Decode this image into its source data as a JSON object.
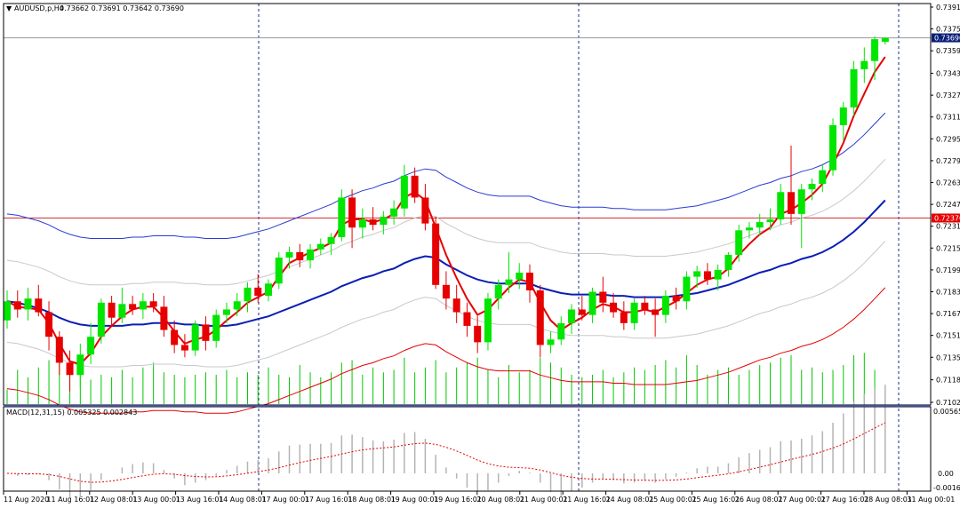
{
  "header": {
    "symbol": "AUDUSD,p,H4",
    "ohlc": "0.73662 0.73691 0.73642 0.73690"
  },
  "macd": {
    "label": "MACD(12,31,15) 0.005325 0.002843",
    "levels": [
      "0.005656",
      "0.00",
      "-0.00162"
    ]
  },
  "price_labels": {
    "current": "0.73690",
    "hline": "0.72370"
  },
  "colors": {
    "bull": "#00e600",
    "bear": "#e60000",
    "ma_fast": "#e60000",
    "ma_mid": "#0a1eb4",
    "env": "#c8c8c8",
    "volume": "#00c800",
    "hline": "#d23232",
    "current_bg": "#0a1e78",
    "hline_bg": "#e60000"
  },
  "chart_data": {
    "type": "candlestick",
    "y_ticks": [
      "0.73915",
      "0.73755",
      "0.73595",
      "0.73430",
      "0.73270",
      "0.73110",
      "0.72950",
      "0.72790",
      "0.72630",
      "0.72470",
      "0.72310",
      "0.72150",
      "0.71990",
      "0.71830",
      "0.71670",
      "0.71510",
      "0.71350",
      "0.71185",
      "0.71020"
    ],
    "ylim": [
      0.7102,
      0.73915
    ],
    "x_labels": [
      "11 Aug 2020",
      "11 Aug 16:01",
      "12 Aug 08:01",
      "13 Aug 00:01",
      "13 Aug 16:01",
      "14 Aug 08:01",
      "17 Aug 00:01",
      "17 Aug 16:01",
      "18 Aug 08:01",
      "19 Aug 00:01",
      "19 Aug 16:01",
      "20 Aug 08:01",
      "21 Aug 00:01",
      "21 Aug 16:01",
      "24 Aug 08:01",
      "25 Aug 00:01",
      "25 Aug 16:01",
      "26 Aug 08:01",
      "27 Aug 00:01",
      "27 Aug 16:01",
      "28 Aug 08:01",
      "31 Aug 00:01"
    ],
    "candles": [
      {
        "o": 0.7162,
        "h": 0.7184,
        "l": 0.7156,
        "c": 0.7176
      },
      {
        "o": 0.7176,
        "h": 0.7184,
        "l": 0.7164,
        "c": 0.717
      },
      {
        "o": 0.717,
        "h": 0.7186,
        "l": 0.7162,
        "c": 0.7178
      },
      {
        "o": 0.7178,
        "h": 0.7188,
        "l": 0.7165,
        "c": 0.7168
      },
      {
        "o": 0.7168,
        "h": 0.7176,
        "l": 0.714,
        "c": 0.715
      },
      {
        "o": 0.715,
        "h": 0.7154,
        "l": 0.7122,
        "c": 0.7131
      },
      {
        "o": 0.7131,
        "h": 0.714,
        "l": 0.711,
        "c": 0.7122
      },
      {
        "o": 0.7122,
        "h": 0.7145,
        "l": 0.7113,
        "c": 0.7137
      },
      {
        "o": 0.7137,
        "h": 0.716,
        "l": 0.713,
        "c": 0.715
      },
      {
        "o": 0.715,
        "h": 0.7178,
        "l": 0.7145,
        "c": 0.7175
      },
      {
        "o": 0.7175,
        "h": 0.718,
        "l": 0.7158,
        "c": 0.7164
      },
      {
        "o": 0.7164,
        "h": 0.7186,
        "l": 0.716,
        "c": 0.7174
      },
      {
        "o": 0.7174,
        "h": 0.718,
        "l": 0.7166,
        "c": 0.717
      },
      {
        "o": 0.717,
        "h": 0.7182,
        "l": 0.7163,
        "c": 0.7176
      },
      {
        "o": 0.7176,
        "h": 0.7182,
        "l": 0.7168,
        "c": 0.7172
      },
      {
        "o": 0.7172,
        "h": 0.718,
        "l": 0.715,
        "c": 0.7155
      },
      {
        "o": 0.7155,
        "h": 0.7162,
        "l": 0.7138,
        "c": 0.7144
      },
      {
        "o": 0.7144,
        "h": 0.7152,
        "l": 0.7135,
        "c": 0.714
      },
      {
        "o": 0.714,
        "h": 0.7162,
        "l": 0.7136,
        "c": 0.7159
      },
      {
        "o": 0.7159,
        "h": 0.7165,
        "l": 0.714,
        "c": 0.7147
      },
      {
        "o": 0.7147,
        "h": 0.717,
        "l": 0.7142,
        "c": 0.7166
      },
      {
        "o": 0.7166,
        "h": 0.7175,
        "l": 0.716,
        "c": 0.717
      },
      {
        "o": 0.717,
        "h": 0.7182,
        "l": 0.7165,
        "c": 0.7176
      },
      {
        "o": 0.7176,
        "h": 0.719,
        "l": 0.7168,
        "c": 0.7186
      },
      {
        "o": 0.7186,
        "h": 0.7196,
        "l": 0.7175,
        "c": 0.718
      },
      {
        "o": 0.718,
        "h": 0.7192,
        "l": 0.7176,
        "c": 0.7189
      },
      {
        "o": 0.7189,
        "h": 0.7212,
        "l": 0.7185,
        "c": 0.7208
      },
      {
        "o": 0.7208,
        "h": 0.7216,
        "l": 0.72,
        "c": 0.7212
      },
      {
        "o": 0.7212,
        "h": 0.7218,
        "l": 0.7201,
        "c": 0.7206
      },
      {
        "o": 0.7206,
        "h": 0.7218,
        "l": 0.72,
        "c": 0.7214
      },
      {
        "o": 0.7214,
        "h": 0.7222,
        "l": 0.721,
        "c": 0.7218
      },
      {
        "o": 0.7218,
        "h": 0.7226,
        "l": 0.721,
        "c": 0.7223
      },
      {
        "o": 0.7223,
        "h": 0.7258,
        "l": 0.722,
        "c": 0.7252
      },
      {
        "o": 0.7252,
        "h": 0.7258,
        "l": 0.7215,
        "c": 0.723
      },
      {
        "o": 0.723,
        "h": 0.7244,
        "l": 0.7222,
        "c": 0.7236
      },
      {
        "o": 0.7236,
        "h": 0.7245,
        "l": 0.7228,
        "c": 0.7232
      },
      {
        "o": 0.7232,
        "h": 0.7242,
        "l": 0.7225,
        "c": 0.7238
      },
      {
        "o": 0.7238,
        "h": 0.725,
        "l": 0.7232,
        "c": 0.7244
      },
      {
        "o": 0.7244,
        "h": 0.7276,
        "l": 0.7238,
        "c": 0.7268
      },
      {
        "o": 0.7268,
        "h": 0.7274,
        "l": 0.7248,
        "c": 0.7252
      },
      {
        "o": 0.7252,
        "h": 0.7262,
        "l": 0.7228,
        "c": 0.7233
      },
      {
        "o": 0.7233,
        "h": 0.7238,
        "l": 0.7185,
        "c": 0.7188
      },
      {
        "o": 0.7188,
        "h": 0.7198,
        "l": 0.717,
        "c": 0.7178
      },
      {
        "o": 0.7178,
        "h": 0.7188,
        "l": 0.716,
        "c": 0.7168
      },
      {
        "o": 0.7168,
        "h": 0.7175,
        "l": 0.715,
        "c": 0.7158
      },
      {
        "o": 0.7158,
        "h": 0.7165,
        "l": 0.7138,
        "c": 0.7146
      },
      {
        "o": 0.7146,
        "h": 0.7182,
        "l": 0.714,
        "c": 0.7178
      },
      {
        "o": 0.7178,
        "h": 0.7192,
        "l": 0.717,
        "c": 0.7188
      },
      {
        "o": 0.7188,
        "h": 0.7212,
        "l": 0.7182,
        "c": 0.7192
      },
      {
        "o": 0.7192,
        "h": 0.7204,
        "l": 0.7185,
        "c": 0.7197
      },
      {
        "o": 0.7197,
        "h": 0.7203,
        "l": 0.7175,
        "c": 0.7184
      },
      {
        "o": 0.7184,
        "h": 0.7188,
        "l": 0.7135,
        "c": 0.7144
      },
      {
        "o": 0.7144,
        "h": 0.7154,
        "l": 0.7138,
        "c": 0.7148
      },
      {
        "o": 0.7148,
        "h": 0.7165,
        "l": 0.7144,
        "c": 0.716
      },
      {
        "o": 0.716,
        "h": 0.7174,
        "l": 0.7152,
        "c": 0.717
      },
      {
        "o": 0.717,
        "h": 0.718,
        "l": 0.7162,
        "c": 0.7166
      },
      {
        "o": 0.7166,
        "h": 0.7186,
        "l": 0.716,
        "c": 0.7183
      },
      {
        "o": 0.7183,
        "h": 0.7194,
        "l": 0.7168,
        "c": 0.7175
      },
      {
        "o": 0.7175,
        "h": 0.7182,
        "l": 0.7164,
        "c": 0.7168
      },
      {
        "o": 0.7168,
        "h": 0.7176,
        "l": 0.7155,
        "c": 0.716
      },
      {
        "o": 0.716,
        "h": 0.7178,
        "l": 0.7155,
        "c": 0.7175
      },
      {
        "o": 0.7175,
        "h": 0.718,
        "l": 0.7166,
        "c": 0.717
      },
      {
        "o": 0.717,
        "h": 0.7178,
        "l": 0.715,
        "c": 0.7166
      },
      {
        "o": 0.7166,
        "h": 0.7184,
        "l": 0.716,
        "c": 0.718
      },
      {
        "o": 0.718,
        "h": 0.7186,
        "l": 0.717,
        "c": 0.7176
      },
      {
        "o": 0.7176,
        "h": 0.7198,
        "l": 0.717,
        "c": 0.7194
      },
      {
        "o": 0.7194,
        "h": 0.7202,
        "l": 0.7186,
        "c": 0.7198
      },
      {
        "o": 0.7198,
        "h": 0.7204,
        "l": 0.7188,
        "c": 0.7192
      },
      {
        "o": 0.7192,
        "h": 0.7203,
        "l": 0.7184,
        "c": 0.7199
      },
      {
        "o": 0.7199,
        "h": 0.7212,
        "l": 0.7194,
        "c": 0.721
      },
      {
        "o": 0.721,
        "h": 0.7232,
        "l": 0.7205,
        "c": 0.7228
      },
      {
        "o": 0.7228,
        "h": 0.7234,
        "l": 0.7222,
        "c": 0.723
      },
      {
        "o": 0.723,
        "h": 0.724,
        "l": 0.7224,
        "c": 0.7234
      },
      {
        "o": 0.7234,
        "h": 0.7244,
        "l": 0.7228,
        "c": 0.7236
      },
      {
        "o": 0.7236,
        "h": 0.7262,
        "l": 0.7232,
        "c": 0.7256
      },
      {
        "o": 0.7256,
        "h": 0.729,
        "l": 0.7232,
        "c": 0.724
      },
      {
        "o": 0.724,
        "h": 0.7262,
        "l": 0.7215,
        "c": 0.7258
      },
      {
        "o": 0.7258,
        "h": 0.7266,
        "l": 0.725,
        "c": 0.7262
      },
      {
        "o": 0.7262,
        "h": 0.7276,
        "l": 0.7256,
        "c": 0.7272
      },
      {
        "o": 0.7272,
        "h": 0.731,
        "l": 0.7268,
        "c": 0.7305
      },
      {
        "o": 0.7305,
        "h": 0.7322,
        "l": 0.7294,
        "c": 0.7318
      },
      {
        "o": 0.7318,
        "h": 0.7352,
        "l": 0.7312,
        "c": 0.7346
      },
      {
        "o": 0.7346,
        "h": 0.7362,
        "l": 0.7336,
        "c": 0.7352
      },
      {
        "o": 0.7352,
        "h": 0.737,
        "l": 0.7338,
        "c": 0.7368
      },
      {
        "o": 0.7366,
        "h": 0.7369,
        "l": 0.7364,
        "c": 0.7369
      }
    ],
    "volume": [
      30,
      70,
      55,
      75,
      90,
      85,
      95,
      65,
      50,
      60,
      55,
      70,
      55,
      75,
      85,
      65,
      60,
      55,
      60,
      65,
      60,
      70,
      55,
      65,
      60,
      75,
      60,
      55,
      80,
      65,
      55,
      65,
      85,
      90,
      60,
      75,
      65,
      70,
      95,
      65,
      75,
      90,
      65,
      75,
      85,
      95,
      70,
      55,
      80,
      65,
      70,
      95,
      85,
      75,
      60,
      55,
      60,
      70,
      55,
      65,
      75,
      70,
      80,
      90,
      75,
      100,
      80,
      60,
      70,
      75,
      60,
      70,
      80,
      85,
      95,
      100,
      70,
      75,
      65,
      70,
      80,
      100,
      105,
      70,
      20
    ],
    "ma_fast": [
      0.7176,
      0.7172,
      0.7171,
      0.717,
      0.716,
      0.7145,
      0.7132,
      0.713,
      0.7138,
      0.715,
      0.7158,
      0.7165,
      0.717,
      0.7172,
      0.7172,
      0.7164,
      0.7154,
      0.7145,
      0.7148,
      0.715,
      0.7155,
      0.7162,
      0.7168,
      0.7175,
      0.7179,
      0.7183,
      0.7194,
      0.7204,
      0.7208,
      0.7212,
      0.7215,
      0.7219,
      0.7232,
      0.7236,
      0.7236,
      0.7234,
      0.7236,
      0.724,
      0.7252,
      0.7256,
      0.725,
      0.723,
      0.721,
      0.7193,
      0.7178,
      0.7166,
      0.717,
      0.7178,
      0.7186,
      0.7192,
      0.719,
      0.7175,
      0.7162,
      0.7155,
      0.716,
      0.7164,
      0.717,
      0.7174,
      0.7172,
      0.7168,
      0.7168,
      0.717,
      0.7168,
      0.7172,
      0.7176,
      0.7182,
      0.7188,
      0.7192,
      0.7194,
      0.72,
      0.721,
      0.7218,
      0.7225,
      0.723,
      0.724,
      0.7243,
      0.7248,
      0.7254,
      0.7262,
      0.7276,
      0.7292,
      0.7312,
      0.7328,
      0.7344,
      0.7355
    ],
    "ma_mid": [
      0.7176,
      0.7175,
      0.7173,
      0.7171,
      0.7168,
      0.7164,
      0.7161,
      0.7159,
      0.7158,
      0.7158,
      0.7158,
      0.7158,
      0.7159,
      0.7159,
      0.716,
      0.716,
      0.716,
      0.7159,
      0.7159,
      0.7158,
      0.7158,
      0.7158,
      0.7159,
      0.7161,
      0.7163,
      0.7165,
      0.7168,
      0.7171,
      0.7174,
      0.7177,
      0.718,
      0.7183,
      0.7187,
      0.719,
      0.7193,
      0.7195,
      0.7198,
      0.72,
      0.7204,
      0.7207,
      0.7209,
      0.7208,
      0.7203,
      0.7199,
      0.7195,
      0.7192,
      0.719,
      0.7189,
      0.7189,
      0.7189,
      0.7189,
      0.7186,
      0.7184,
      0.7182,
      0.7181,
      0.7181,
      0.7181,
      0.7181,
      0.718,
      0.718,
      0.7179,
      0.7179,
      0.7179,
      0.7179,
      0.718,
      0.7181,
      0.7182,
      0.7184,
      0.7186,
      0.7188,
      0.7191,
      0.7194,
      0.7197,
      0.7199,
      0.7202,
      0.7204,
      0.7207,
      0.7209,
      0.7212,
      0.7216,
      0.7221,
      0.7227,
      0.7234,
      0.7242,
      0.725
    ]
  }
}
